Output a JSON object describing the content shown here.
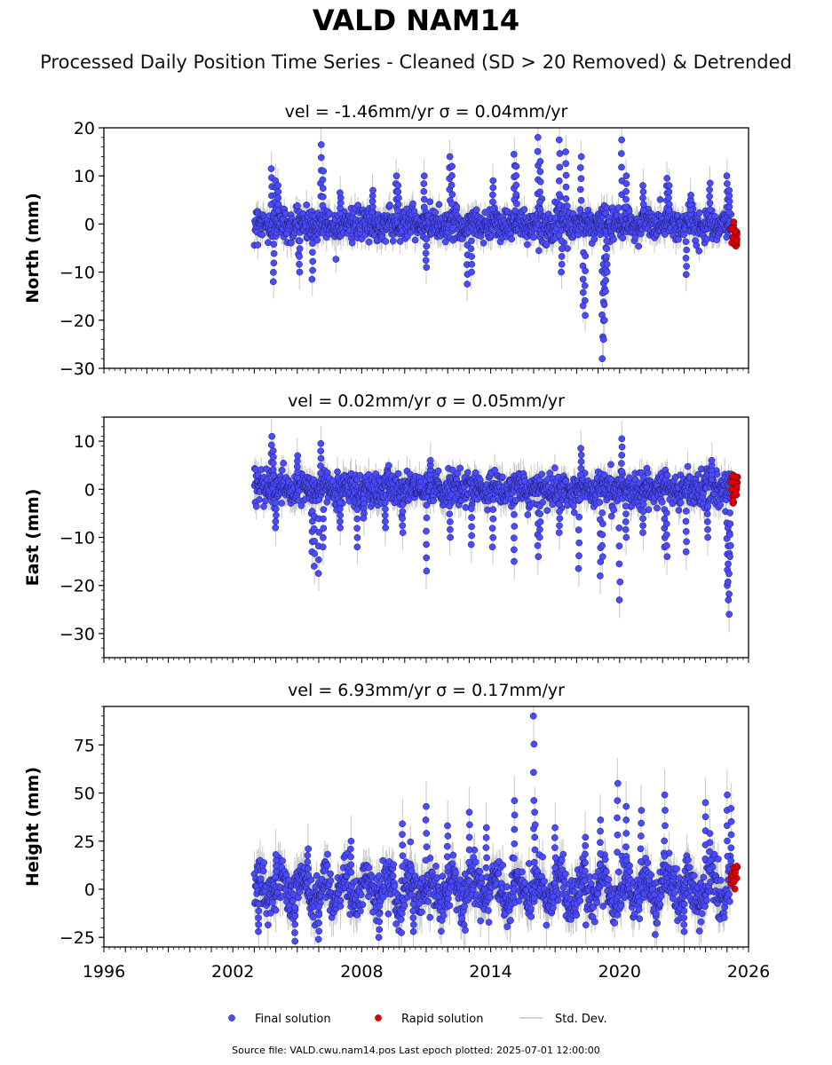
{
  "title": "VALD NAM14",
  "subtitle": "Processed Daily Position Time Series - Cleaned (SD > 20 Removed) & Detrended",
  "source_text": "Source file: VALD.cwu.nam14.pos  Last epoch plotted: 2025-07-01 12:00:00",
  "colors": {
    "final": "#4a4aff",
    "final_edge": "#1a1a5a",
    "rapid": "#e00000",
    "stddev": "#c8c8c8"
  },
  "chart_data": [
    {
      "type": "scatter",
      "name": "north",
      "title": "vel = -1.46mm/yr   σ = 0.04mm/yr",
      "ylabel": "North (mm)",
      "xlim": [
        1996,
        2026
      ],
      "ylim": [
        -30,
        20
      ],
      "yticks": [
        -30,
        -20,
        -10,
        0,
        10,
        20
      ],
      "ytick_labels": [
        "−30",
        "−20",
        "−10",
        "0",
        "10",
        "20"
      ],
      "noise_sd": 1.6,
      "spikes": [
        {
          "x": 2003.8,
          "y": 11.5
        },
        {
          "x": 2003.9,
          "y": -12
        },
        {
          "x": 2004.0,
          "y": 9
        },
        {
          "x": 2004.1,
          "y": 8
        },
        {
          "x": 2005.1,
          "y": -10
        },
        {
          "x": 2005.7,
          "y": -11.5
        },
        {
          "x": 2006.1,
          "y": 16.5
        },
        {
          "x": 2006.2,
          "y": 11
        },
        {
          "x": 2007.0,
          "y": 6.5
        },
        {
          "x": 2008.5,
          "y": 7
        },
        {
          "x": 2009.6,
          "y": 10
        },
        {
          "x": 2009.7,
          "y": 8
        },
        {
          "x": 2010.9,
          "y": 10
        },
        {
          "x": 2011.0,
          "y": -9
        },
        {
          "x": 2012.1,
          "y": 14
        },
        {
          "x": 2012.2,
          "y": 12
        },
        {
          "x": 2012.9,
          "y": -12.5
        },
        {
          "x": 2013.1,
          "y": -10
        },
        {
          "x": 2014.1,
          "y": 9
        },
        {
          "x": 2015.1,
          "y": 14.5
        },
        {
          "x": 2015.2,
          "y": 12
        },
        {
          "x": 2016.2,
          "y": 18
        },
        {
          "x": 2016.3,
          "y": 13
        },
        {
          "x": 2017.2,
          "y": 17.5
        },
        {
          "x": 2017.3,
          "y": -10
        },
        {
          "x": 2017.5,
          "y": 15
        },
        {
          "x": 2018.2,
          "y": 14
        },
        {
          "x": 2018.3,
          "y": -17
        },
        {
          "x": 2018.4,
          "y": -19
        },
        {
          "x": 2019.2,
          "y": -28
        },
        {
          "x": 2019.25,
          "y": -24
        },
        {
          "x": 2019.3,
          "y": -20
        },
        {
          "x": 2019.35,
          "y": -14
        },
        {
          "x": 2019.4,
          "y": -10
        },
        {
          "x": 2020.1,
          "y": 17.5
        },
        {
          "x": 2020.3,
          "y": 10
        },
        {
          "x": 2021.1,
          "y": 8
        },
        {
          "x": 2022.2,
          "y": 9.5
        },
        {
          "x": 2022.3,
          "y": 8
        },
        {
          "x": 2023.1,
          "y": -10.5
        },
        {
          "x": 2023.3,
          "y": 6
        },
        {
          "x": 2024.2,
          "y": 8.5
        },
        {
          "x": 2025.0,
          "y": 10
        },
        {
          "x": 2025.1,
          "y": 7
        }
      ],
      "rapid": {
        "x_start": 2025.2,
        "x_end": 2025.5,
        "y_min": -5,
        "y_max": 1
      }
    },
    {
      "type": "scatter",
      "name": "east",
      "title": "vel = 0.02mm/yr   σ = 0.05mm/yr",
      "ylabel": "East (mm)",
      "xlim": [
        1996,
        2026
      ],
      "ylim": [
        -35,
        15
      ],
      "yticks": [
        -30,
        -20,
        -10,
        0,
        10
      ],
      "ytick_labels": [
        "−30",
        "−20",
        "−10",
        "0",
        "10"
      ],
      "noise_sd": 1.7,
      "spikes": [
        {
          "x": 2003.8,
          "y": 11
        },
        {
          "x": 2003.9,
          "y": 8
        },
        {
          "x": 2004.0,
          "y": -8
        },
        {
          "x": 2005.0,
          "y": 7
        },
        {
          "x": 2005.7,
          "y": -13
        },
        {
          "x": 2005.8,
          "y": -16
        },
        {
          "x": 2006.0,
          "y": -17.5
        },
        {
          "x": 2006.1,
          "y": 9.5
        },
        {
          "x": 2006.2,
          "y": -12
        },
        {
          "x": 2007.0,
          "y": -8
        },
        {
          "x": 2007.8,
          "y": -12
        },
        {
          "x": 2008.1,
          "y": -6
        },
        {
          "x": 2009.1,
          "y": -8
        },
        {
          "x": 2009.9,
          "y": -9
        },
        {
          "x": 2011.0,
          "y": -17
        },
        {
          "x": 2011.2,
          "y": 6
        },
        {
          "x": 2012.1,
          "y": -10
        },
        {
          "x": 2013.1,
          "y": -11.5
        },
        {
          "x": 2014.1,
          "y": -12
        },
        {
          "x": 2015.1,
          "y": -15
        },
        {
          "x": 2016.2,
          "y": -14
        },
        {
          "x": 2016.3,
          "y": -10
        },
        {
          "x": 2017.2,
          "y": -9
        },
        {
          "x": 2018.1,
          "y": -16.5
        },
        {
          "x": 2018.2,
          "y": 8.5
        },
        {
          "x": 2019.1,
          "y": -18
        },
        {
          "x": 2019.2,
          "y": -14
        },
        {
          "x": 2020.0,
          "y": -23
        },
        {
          "x": 2020.1,
          "y": 10.5
        },
        {
          "x": 2020.3,
          "y": -10
        },
        {
          "x": 2021.1,
          "y": -9
        },
        {
          "x": 2022.1,
          "y": -12
        },
        {
          "x": 2022.2,
          "y": -14
        },
        {
          "x": 2023.1,
          "y": -13
        },
        {
          "x": 2024.1,
          "y": -10
        },
        {
          "x": 2024.3,
          "y": 6
        },
        {
          "x": 2025.0,
          "y": -20
        },
        {
          "x": 2025.05,
          "y": -23
        },
        {
          "x": 2025.1,
          "y": -26
        },
        {
          "x": 2025.15,
          "y": -14
        }
      ],
      "rapid": {
        "x_start": 2025.2,
        "x_end": 2025.5,
        "y_min": -3,
        "y_max": 3
      }
    },
    {
      "type": "scatter",
      "name": "height",
      "title": "vel = 6.93mm/yr   σ = 0.17mm/yr",
      "ylabel": "Height (mm)",
      "xlim": [
        1996,
        2026
      ],
      "ylim": [
        -30,
        95
      ],
      "yticks": [
        -25,
        0,
        25,
        50,
        75
      ],
      "ytick_labels": [
        "−25",
        "0",
        "25",
        "50",
        "75"
      ],
      "noise_sd": 6.0,
      "spikes": [
        {
          "x": 2003.2,
          "y": -22
        },
        {
          "x": 2004.0,
          "y": 18
        },
        {
          "x": 2004.9,
          "y": -27
        },
        {
          "x": 2005.5,
          "y": 21
        },
        {
          "x": 2006.0,
          "y": -26
        },
        {
          "x": 2007.5,
          "y": 25
        },
        {
          "x": 2008.8,
          "y": -25
        },
        {
          "x": 2009.9,
          "y": 34
        },
        {
          "x": 2010.4,
          "y": -22
        },
        {
          "x": 2011.0,
          "y": 43
        },
        {
          "x": 2012.0,
          "y": 33
        },
        {
          "x": 2013.0,
          "y": 40
        },
        {
          "x": 2013.8,
          "y": 32
        },
        {
          "x": 2015.1,
          "y": 46
        },
        {
          "x": 2016.0,
          "y": 90
        },
        {
          "x": 2016.05,
          "y": 40
        },
        {
          "x": 2017.0,
          "y": 32
        },
        {
          "x": 2018.4,
          "y": 27
        },
        {
          "x": 2019.1,
          "y": 36
        },
        {
          "x": 2019.9,
          "y": 55
        },
        {
          "x": 2020.3,
          "y": 43
        },
        {
          "x": 2021.0,
          "y": 41
        },
        {
          "x": 2022.1,
          "y": 49
        },
        {
          "x": 2023.0,
          "y": -22
        },
        {
          "x": 2024.0,
          "y": 45
        },
        {
          "x": 2024.2,
          "y": 29
        },
        {
          "x": 2025.0,
          "y": 49
        },
        {
          "x": 2025.2,
          "y": 42
        }
      ],
      "rapid": {
        "x_start": 2025.2,
        "x_end": 2025.5,
        "y_min": 0,
        "y_max": 12
      }
    }
  ],
  "xtick_labels": [
    "1996",
    "2002",
    "2008",
    "2014",
    "2020",
    "2026"
  ],
  "xticks": [
    1996,
    2002,
    2008,
    2014,
    2020,
    2026
  ],
  "data_span": [
    2003.0,
    2025.2
  ],
  "legend": {
    "final": "Final solution",
    "rapid": "Rapid solution",
    "stddev": "Std. Dev."
  }
}
